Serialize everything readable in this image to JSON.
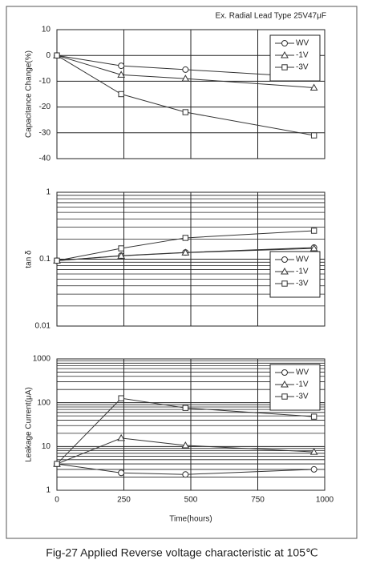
{
  "caption": "Fig-27 Applied Reverse voltage characteristic at 105℃",
  "chart_data": [
    {
      "type": "line",
      "annotation": "Ex. Radial Lead Type 25V47μF",
      "ylabel": "Capacitance Change(%)",
      "xlim": [
        0,
        1000
      ],
      "xticks": [
        0,
        250,
        500,
        750,
        1000
      ],
      "xtick_labels": false,
      "ylim": [
        -40,
        10
      ],
      "yticks": [
        10,
        0,
        -10,
        -20,
        -30,
        -40
      ],
      "log_y": false,
      "grid": true,
      "legend": "upper right",
      "series": [
        {
          "name": "WV",
          "marker": "circle",
          "color": "#333333",
          "x": [
            0,
            240,
            480,
            960
          ],
          "values": [
            0,
            -4,
            -5.5,
            -8.5
          ]
        },
        {
          "name": "-1V",
          "marker": "triangle",
          "color": "#333333",
          "x": [
            0,
            240,
            480,
            960
          ],
          "values": [
            0,
            -7.5,
            -9,
            -12.5
          ]
        },
        {
          "name": "-3V",
          "marker": "square",
          "color": "#333333",
          "x": [
            0,
            240,
            480,
            960
          ],
          "values": [
            0,
            -15,
            -22,
            -31
          ]
        }
      ]
    },
    {
      "type": "line",
      "ylabel": "tan δ",
      "xlim": [
        0,
        1000
      ],
      "xticks": [
        0,
        250,
        500,
        750,
        1000
      ],
      "xtick_labels": false,
      "ylim": [
        0.01,
        1
      ],
      "yticks": [
        1,
        0.1,
        0.01
      ],
      "log_y": true,
      "grid": true,
      "legend": "lower right",
      "series": [
        {
          "name": "WV",
          "marker": "circle",
          "color": "#333333",
          "x": [
            0,
            240,
            480,
            960
          ],
          "values": [
            0.095,
            0.113,
            0.126,
            0.149
          ]
        },
        {
          "name": "-1V",
          "marker": "triangle",
          "color": "#333333",
          "x": [
            0,
            240,
            480,
            960
          ],
          "values": [
            0.095,
            0.112,
            0.125,
            0.145
          ]
        },
        {
          "name": "-3V",
          "marker": "square",
          "color": "#333333",
          "x": [
            0,
            240,
            480,
            960
          ],
          "values": [
            0.095,
            0.145,
            0.208,
            0.266
          ]
        }
      ]
    },
    {
      "type": "line",
      "ylabel": "Leakage Current(μA)",
      "xlabel": "Time(hours)",
      "xlim": [
        0,
        1000
      ],
      "xticks": [
        0,
        250,
        500,
        750,
        1000
      ],
      "xtick_labels": true,
      "ylim": [
        1,
        1000
      ],
      "yticks": [
        1000,
        100,
        10,
        1
      ],
      "log_y": true,
      "grid": true,
      "legend": "upper right",
      "series": [
        {
          "name": "WV",
          "marker": "circle",
          "color": "#333333",
          "x": [
            0,
            240,
            480,
            960
          ],
          "values": [
            4,
            2.5,
            2.3,
            3
          ]
        },
        {
          "name": "-1V",
          "marker": "triangle",
          "color": "#333333",
          "x": [
            0,
            240,
            480,
            960
          ],
          "values": [
            4,
            15.5,
            10.6,
            7.5
          ]
        },
        {
          "name": "-3V",
          "marker": "square",
          "color": "#333333",
          "x": [
            0,
            240,
            480,
            960
          ],
          "values": [
            4,
            126,
            76,
            48
          ]
        }
      ]
    }
  ]
}
